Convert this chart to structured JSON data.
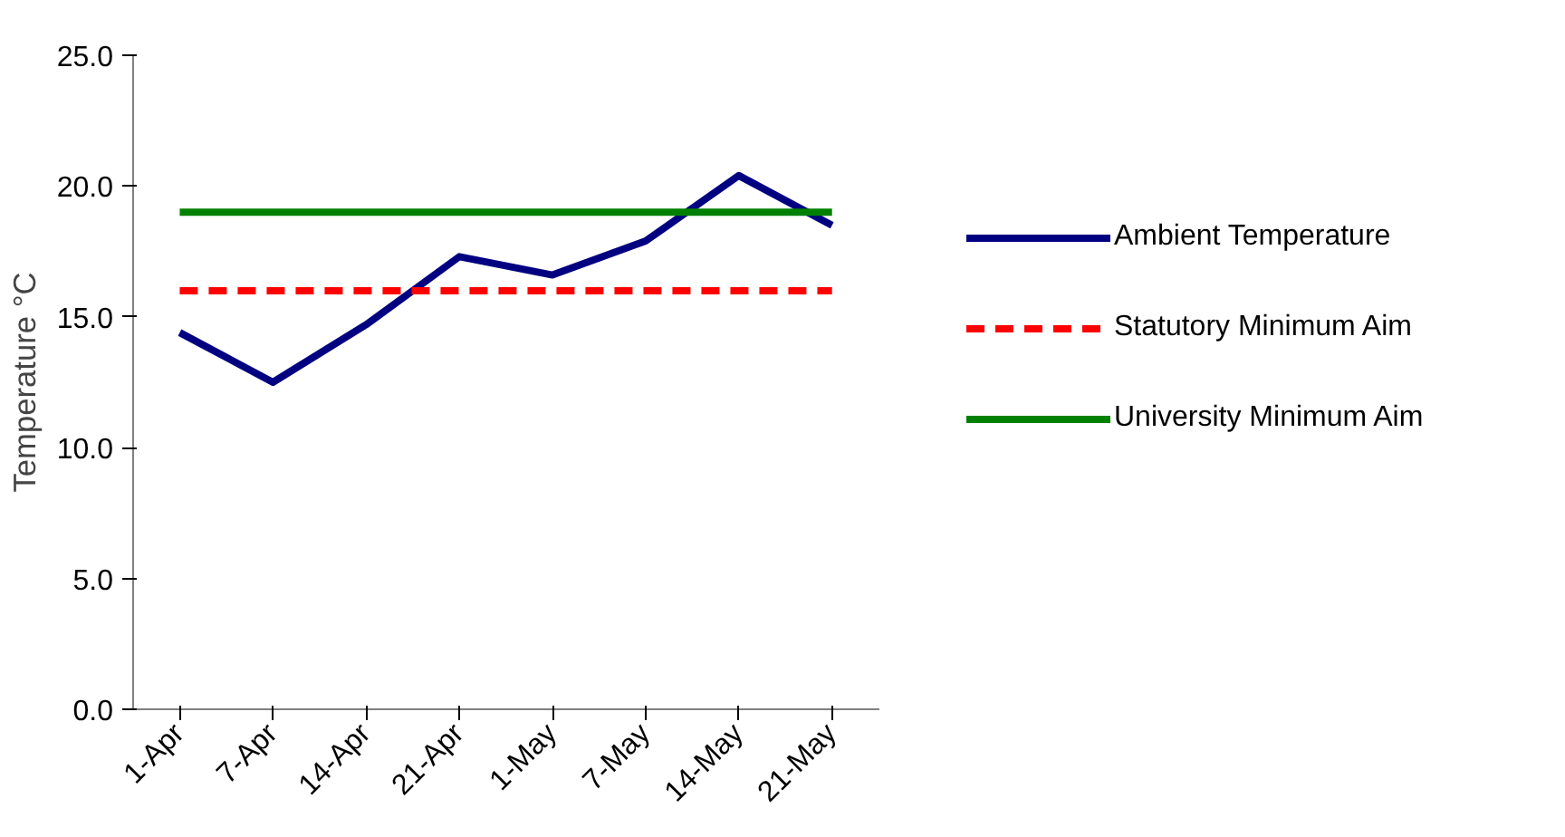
{
  "chart_data": {
    "type": "line",
    "ylabel": "Temperature °C",
    "categories": [
      "1-Apr",
      "7-Apr",
      "14-Apr",
      "21-Apr",
      "1-May",
      "7-May",
      "14-May",
      "21-May"
    ],
    "series": [
      {
        "name": "Ambient Temperature",
        "color": "#000080",
        "values": [
          14.4,
          12.5,
          14.7,
          17.3,
          16.6,
          17.9,
          20.4,
          18.5
        ]
      },
      {
        "name": "Statutory Minimum Aim",
        "color": "#ff0000",
        "line_style": "dashed",
        "values": [
          16,
          16,
          16,
          16,
          16,
          16,
          16,
          16
        ]
      },
      {
        "name": "University Minimum Aim",
        "color": "#008000",
        "values": [
          19,
          19,
          19,
          19,
          19,
          19,
          19,
          19
        ]
      }
    ],
    "ylim": [
      0,
      25
    ],
    "yticks": [
      {
        "value": 0,
        "label": "0.0"
      },
      {
        "value": 5,
        "label": "5.0"
      },
      {
        "value": 10,
        "label": "10.0"
      },
      {
        "value": 15,
        "label": "15.0"
      },
      {
        "value": 20,
        "label": "20.0"
      },
      {
        "value": 25,
        "label": "25.0"
      }
    ],
    "grid": false,
    "legend": "right",
    "marker": "none"
  }
}
